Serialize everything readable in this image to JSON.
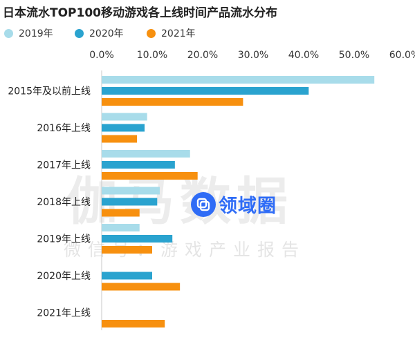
{
  "page": {
    "title": "日本流水TOP100移动游戏各上线时间产品流水分布"
  },
  "watermarks": {
    "main": "伽马数据",
    "sub": "微信号：游戏产业报告"
  },
  "logo": {
    "text": "领域圈",
    "icon": "square-link-icon",
    "color": "#2f6cf6"
  },
  "chart_data": {
    "type": "bar",
    "orientation": "horizontal",
    "title": "日本流水TOP100移动游戏各上线时间产品流水分布",
    "categories": [
      "2015年及以前上线",
      "2016年上线",
      "2017年上线",
      "2018年上线",
      "2019年上线",
      "2020年上线",
      "2021年上线"
    ],
    "series": [
      {
        "name": "2019年",
        "color": "#a8dcea",
        "values": [
          54.0,
          9.0,
          17.5,
          11.5,
          7.5,
          0.0,
          0.0
        ]
      },
      {
        "name": "2020年",
        "color": "#2aa3cf",
        "values": [
          41.0,
          8.5,
          14.5,
          11.0,
          14.0,
          10.0,
          0.0
        ]
      },
      {
        "name": "2021年",
        "color": "#f7900f",
        "values": [
          28.0,
          7.0,
          19.0,
          7.5,
          10.0,
          15.5,
          12.5
        ]
      }
    ],
    "xlim": [
      0,
      60
    ],
    "xticks": [
      "0.0%",
      "10.0%",
      "20.0%",
      "30.0%",
      "40.0%",
      "50.0%",
      "60.0%"
    ],
    "xaxis_position": "top",
    "legend_position": "top-left",
    "grid": false
  }
}
